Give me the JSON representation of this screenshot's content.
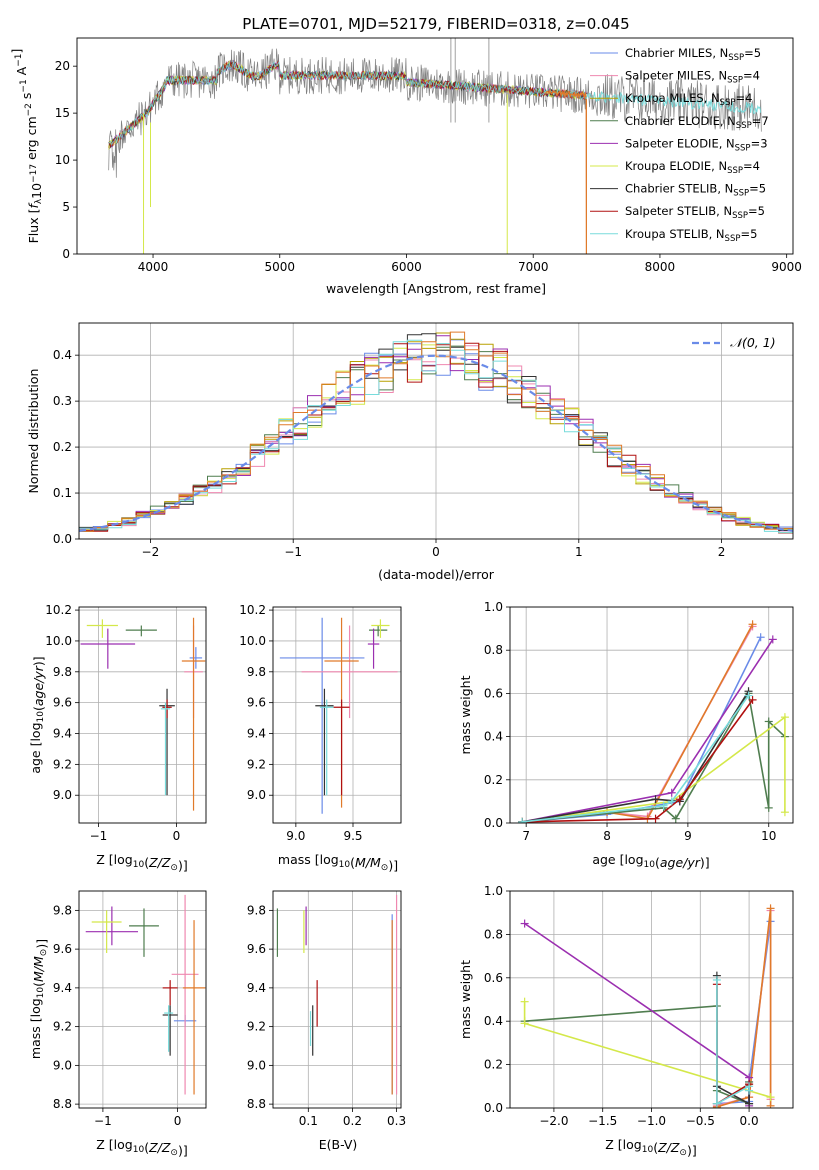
{
  "figure_title": "PLATE=0701, MJD=52179, FIBERID=0318, z=0.045",
  "colors": {
    "chabrier_miles": "#6a8be8",
    "salpeter_miles": "#ef88b0",
    "kroupa_miles": "#b8a000",
    "chabrier_elodie": "#4f7d4f",
    "salpeter_elodie": "#9b2fb0",
    "kroupa_elodie": "#d4e84a",
    "chabrier_stelib": "#333333",
    "salpeter_stelib": "#b01010",
    "kroupa_stelib": "#78dcdc",
    "data": "#808080",
    "orange": "#e07a2a",
    "grid": "#b0b0b0"
  },
  "chart_data": [
    {
      "id": "spectrum",
      "type": "line",
      "xlabel": "wavelength [Angstrom, rest frame]",
      "ylabel": "Flux [fλ10⁻¹⁷ erg cm⁻² s⁻¹ A⁻¹]",
      "xlim": [
        3400,
        9050
      ],
      "ylim": [
        0,
        23
      ],
      "xticks": [
        4000,
        5000,
        6000,
        7000,
        8000,
        9000
      ],
      "yticks": [
        0,
        5,
        10,
        15,
        20
      ],
      "grid": false,
      "legend_position": "top-right",
      "legend": [
        {
          "label": "Chabrier MILES, N",
          "sub": "SSP",
          "tail": "=5",
          "color_key": "chabrier_miles"
        },
        {
          "label": "Salpeter MILES, N",
          "sub": "SSP",
          "tail": "=4",
          "color_key": "salpeter_miles"
        },
        {
          "label": "Kroupa MILES, N",
          "sub": "SSP",
          "tail": "=4",
          "color_key": "kroupa_miles"
        },
        {
          "label": "Chabrier ELODIE, N",
          "sub": "SSP",
          "tail": "=7",
          "color_key": "chabrier_elodie"
        },
        {
          "label": "Salpeter ELODIE, N",
          "sub": "SSP",
          "tail": "=3",
          "color_key": "salpeter_elodie"
        },
        {
          "label": "Kroupa ELODIE, N",
          "sub": "SSP",
          "tail": "=4",
          "color_key": "kroupa_elodie"
        },
        {
          "label": "Chabrier STELIB, N",
          "sub": "SSP",
          "tail": "=5",
          "color_key": "chabrier_stelib"
        },
        {
          "label": "Salpeter STELIB, N",
          "sub": "SSP",
          "tail": "=5",
          "color_key": "salpeter_stelib"
        },
        {
          "label": "Kroupa STELIB, N",
          "sub": "SSP",
          "tail": "=5",
          "color_key": "kroupa_stelib"
        }
      ],
      "data_spectrum": {
        "x_start": 3650,
        "x_end": 8800,
        "approx_level": 18.5,
        "noise_amplitude": 2.5
      },
      "model_range": {
        "x_start": 3650,
        "x_end": 7420
      }
    },
    {
      "id": "residuals",
      "type": "histogram",
      "xlabel": "(data-model)/error",
      "ylabel": "Normed distribution",
      "xlim": [
        -2.5,
        2.5
      ],
      "ylim": [
        0,
        0.47
      ],
      "xticks": [
        -2,
        -1,
        0,
        1,
        2
      ],
      "yticks": [
        0.0,
        0.1,
        0.2,
        0.3,
        0.4
      ],
      "grid": true,
      "legend_position": "top-right",
      "legend_label": "𝒩(0, 1)",
      "gaussian": {
        "mean": 0,
        "sigma": 1
      },
      "bin_width": 0.1
    },
    {
      "id": "age_vs_Z",
      "type": "errorbar",
      "xlabel": "Z [log10(Z/Z⊙)]",
      "ylabel": "age  [log10(age/yr)]",
      "xlim": [
        -1.25,
        0.38
      ],
      "ylim": [
        8.82,
        10.22
      ],
      "xticks": [
        -1,
        0
      ],
      "yticks": [
        9.0,
        9.2,
        9.4,
        9.6,
        9.8,
        10.0,
        10.2
      ],
      "points": [
        {
          "x": 0.25,
          "y": 9.89,
          "xerr": 0.08,
          "ye": [
            9.82,
            9.96
          ],
          "c": "chabrier_miles"
        },
        {
          "x": 0.22,
          "y": 9.8,
          "xerr": 0.12,
          "ye": [
            9.5,
            10.1
          ],
          "c": "salpeter_miles"
        },
        {
          "x": 0.22,
          "y": 9.87,
          "xerr": 0.15,
          "ye": [
            8.9,
            10.15
          ],
          "c": "orange"
        },
        {
          "x": -0.45,
          "y": 10.07,
          "xerr": 0.2,
          "ye": [
            10.03,
            10.1
          ],
          "c": "chabrier_elodie"
        },
        {
          "x": -0.88,
          "y": 9.98,
          "xerr": 0.35,
          "ye": [
            9.82,
            10.08
          ],
          "c": "salpeter_elodie"
        },
        {
          "x": -0.95,
          "y": 10.1,
          "xerr": 0.2,
          "ye": [
            10.02,
            10.14
          ],
          "c": "kroupa_elodie"
        },
        {
          "x": -0.12,
          "y": 9.58,
          "xerr": 0.1,
          "ye": [
            9.0,
            9.69
          ],
          "c": "chabrier_stelib"
        },
        {
          "x": -0.12,
          "y": 9.57,
          "xerr": 0.06,
          "ye": [
            9.5,
            9.62
          ],
          "c": "salpeter_stelib"
        },
        {
          "x": -0.14,
          "y": 9.56,
          "xerr": 0.06,
          "ye": [
            9.0,
            9.6
          ],
          "c": "kroupa_stelib"
        }
      ]
    },
    {
      "id": "age_vs_mass",
      "type": "errorbar",
      "xlabel": "mass [log10(M/M⊙)]",
      "ylabel": "",
      "xlim": [
        8.8,
        9.92
      ],
      "ylim": [
        8.82,
        10.22
      ],
      "xticks": [
        9.0,
        9.5
      ],
      "yticks": [
        9.0,
        9.2,
        9.4,
        9.6,
        9.8,
        10.0,
        10.2
      ],
      "points": [
        {
          "x": 9.23,
          "y": 9.89,
          "xerr": 0.37,
          "ye": [
            8.88,
            10.15
          ],
          "c": "chabrier_miles"
        },
        {
          "x": 9.47,
          "y": 9.8,
          "xerr": 0.42,
          "ye": [
            9.5,
            10.1
          ],
          "c": "salpeter_miles"
        },
        {
          "x": 9.4,
          "y": 9.87,
          "xerr": 0.15,
          "ye": [
            8.92,
            10.15
          ],
          "c": "orange"
        },
        {
          "x": 9.72,
          "y": 10.07,
          "xerr": 0.08,
          "ye": [
            10.03,
            10.1
          ],
          "c": "chabrier_elodie"
        },
        {
          "x": 9.68,
          "y": 9.98,
          "xerr": 0.05,
          "ye": [
            9.82,
            10.08
          ],
          "c": "salpeter_elodie"
        },
        {
          "x": 9.74,
          "y": 10.1,
          "xerr": 0.08,
          "ye": [
            10.02,
            10.14
          ],
          "c": "kroupa_elodie"
        },
        {
          "x": 9.25,
          "y": 9.58,
          "xerr": 0.08,
          "ye": [
            9.0,
            9.69
          ],
          "c": "chabrier_stelib"
        },
        {
          "x": 9.4,
          "y": 9.57,
          "xerr": 0.07,
          "ye": [
            9.0,
            9.62
          ],
          "c": "salpeter_stelib"
        },
        {
          "x": 9.27,
          "y": 9.57,
          "xerr": 0.06,
          "ye": [
            9.0,
            9.62
          ],
          "c": "kroupa_stelib"
        }
      ]
    },
    {
      "id": "massweight_vs_age",
      "type": "line",
      "xlabel": "age  [log10(age/yr)]",
      "ylabel": "mass weight",
      "xlim": [
        6.8,
        10.3
      ],
      "ylim": [
        0,
        1.0
      ],
      "xticks": [
        7,
        8,
        9,
        10
      ],
      "yticks": [
        0.0,
        0.2,
        0.4,
        0.6,
        0.8,
        1.0
      ],
      "grid": true,
      "series": [
        {
          "c": "chabrier_miles",
          "x": [
            6.95,
            8.0,
            8.6,
            8.9,
            9.9
          ],
          "y": [
            0.005,
            0.04,
            0.08,
            0.1,
            0.86
          ]
        },
        {
          "c": "salpeter_miles",
          "x": [
            6.95,
            8.0,
            8.5,
            9.8
          ],
          "y": [
            0.005,
            0.05,
            0.03,
            0.91
          ]
        },
        {
          "c": "orange",
          "x": [
            6.95,
            8.0,
            8.5,
            9.8
          ],
          "y": [
            0.005,
            0.05,
            0.02,
            0.92
          ]
        },
        {
          "c": "chabrier_elodie",
          "x": [
            6.95,
            8.7,
            8.85,
            9.75,
            10.0,
            10.0,
            10.2
          ],
          "y": [
            0.005,
            0.07,
            0.02,
            0.6,
            0.07,
            0.47,
            0.4
          ]
        },
        {
          "c": "salpeter_elodie",
          "x": [
            6.95,
            8.8,
            10.05
          ],
          "y": [
            0.005,
            0.14,
            0.85
          ]
        },
        {
          "c": "kroupa_elodie",
          "x": [
            6.95,
            8.8,
            10.2,
            10.2
          ],
          "y": [
            0.005,
            0.1,
            0.49,
            0.05
          ]
        },
        {
          "c": "chabrier_stelib",
          "x": [
            6.95,
            8.6,
            8.9,
            9.75
          ],
          "y": [
            0.005,
            0.11,
            0.1,
            0.61
          ]
        },
        {
          "c": "salpeter_stelib",
          "x": [
            6.95,
            8.6,
            8.9,
            9.8
          ],
          "y": [
            0.005,
            0.02,
            0.11,
            0.57
          ]
        },
        {
          "c": "kroupa_stelib",
          "x": [
            6.95,
            8.7,
            8.8,
            9.75
          ],
          "y": [
            0.005,
            0.08,
            0.1,
            0.59
          ]
        }
      ]
    },
    {
      "id": "mass_vs_Z",
      "type": "errorbar",
      "xlabel": "Z [log10(Z/Z⊙)]",
      "ylabel": "mass [log10(M/M⊙)]",
      "xlim": [
        -1.32,
        0.38
      ],
      "ylim": [
        8.78,
        9.9
      ],
      "xticks": [
        -1,
        0
      ],
      "yticks": [
        8.8,
        9.0,
        9.2,
        9.4,
        9.6,
        9.8
      ],
      "points": [
        {
          "x": 0.1,
          "y": 9.23,
          "xerr": 0.15,
          "ye": [
            9.2,
            9.26
          ],
          "c": "chabrier_miles"
        },
        {
          "x": 0.1,
          "y": 9.47,
          "xerr": 0.18,
          "ye": [
            8.85,
            9.88
          ],
          "c": "salpeter_miles"
        },
        {
          "x": 0.22,
          "y": 9.4,
          "xerr": 0.15,
          "ye": [
            8.85,
            9.75
          ],
          "c": "orange"
        },
        {
          "x": -0.45,
          "y": 9.72,
          "xerr": 0.2,
          "ye": [
            9.56,
            9.81
          ],
          "c": "chabrier_elodie"
        },
        {
          "x": -0.88,
          "y": 9.69,
          "xerr": 0.35,
          "ye": [
            9.62,
            9.82
          ],
          "c": "salpeter_elodie"
        },
        {
          "x": -0.95,
          "y": 9.74,
          "xerr": 0.2,
          "ye": [
            9.58,
            9.8
          ],
          "c": "kroupa_elodie"
        },
        {
          "x": -0.1,
          "y": 9.26,
          "xerr": 0.1,
          "ye": [
            9.05,
            9.31
          ],
          "c": "chabrier_stelib"
        },
        {
          "x": -0.1,
          "y": 9.4,
          "xerr": 0.1,
          "ye": [
            9.31,
            9.44
          ],
          "c": "salpeter_stelib"
        },
        {
          "x": -0.12,
          "y": 9.27,
          "xerr": 0.06,
          "ye": [
            9.07,
            9.31
          ],
          "c": "kroupa_stelib"
        }
      ]
    },
    {
      "id": "mass_vs_ebv",
      "type": "errorbar",
      "xlabel": "E(B-V)",
      "ylabel": "",
      "xlim": [
        0.02,
        0.31
      ],
      "ylim": [
        8.78,
        9.9
      ],
      "xticks": [
        0.1,
        0.2,
        0.3
      ],
      "yticks": [
        8.8,
        9.0,
        9.2,
        9.4,
        9.6,
        9.8
      ],
      "points": [
        {
          "x": 0.29,
          "y": 9.23,
          "xerr": 0.0,
          "ye": [
            8.85,
            9.78
          ],
          "c": "chabrier_miles"
        },
        {
          "x": 0.3,
          "y": 9.47,
          "xerr": 0.0,
          "ye": [
            8.85,
            9.88
          ],
          "c": "salpeter_miles"
        },
        {
          "x": 0.29,
          "y": 9.4,
          "xerr": 0.0,
          "ye": [
            8.85,
            9.75
          ],
          "c": "orange"
        },
        {
          "x": 0.03,
          "y": 9.72,
          "xerr": 0.0,
          "ye": [
            9.56,
            9.81
          ],
          "c": "chabrier_elodie"
        },
        {
          "x": 0.095,
          "y": 9.69,
          "xerr": 0.0,
          "ye": [
            9.62,
            9.82
          ],
          "c": "salpeter_elodie"
        },
        {
          "x": 0.09,
          "y": 9.74,
          "xerr": 0.0,
          "ye": [
            9.58,
            9.8
          ],
          "c": "kroupa_elodie"
        },
        {
          "x": 0.11,
          "y": 9.2,
          "xerr": 0.0,
          "ye": [
            9.05,
            9.31
          ],
          "c": "chabrier_stelib"
        },
        {
          "x": 0.12,
          "y": 9.3,
          "xerr": 0.0,
          "ye": [
            9.2,
            9.44
          ],
          "c": "salpeter_stelib"
        },
        {
          "x": 0.105,
          "y": 9.2,
          "xerr": 0.0,
          "ye": [
            9.1,
            9.28
          ],
          "c": "kroupa_stelib"
        }
      ]
    },
    {
      "id": "massweight_vs_Z",
      "type": "line",
      "xlabel": "Z [log10(Z/Z⊙)]",
      "ylabel": "mass weight",
      "xlim": [
        -2.45,
        0.45
      ],
      "ylim": [
        0,
        1.0
      ],
      "xticks": [
        -2.0,
        -1.5,
        -1.0,
        -0.5,
        0.0
      ],
      "yticks": [
        0.0,
        0.2,
        0.4,
        0.6,
        0.8,
        1.0
      ],
      "grid": true,
      "series": [
        {
          "c": "chabrier_miles",
          "x": [
            -0.33,
            0.0,
            0.0,
            0.22
          ],
          "y": [
            0.02,
            0.03,
            0.12,
            0.86
          ]
        },
        {
          "c": "salpeter_miles",
          "x": [
            -0.33,
            0.0,
            0.22,
            0.22
          ],
          "y": [
            0.01,
            0.05,
            0.91,
            0.04
          ]
        },
        {
          "c": "orange",
          "x": [
            -0.33,
            0.0,
            0.22,
            0.22
          ],
          "y": [
            0.005,
            0.05,
            0.92,
            0.01
          ]
        },
        {
          "c": "chabrier_elodie",
          "x": [
            -2.3,
            -0.33,
            -0.33,
            0.0,
            0.0
          ],
          "y": [
            0.4,
            0.47,
            0.08,
            0.02,
            0.12
          ]
        },
        {
          "c": "salpeter_elodie",
          "x": [
            -2.3,
            0.0,
            0.0
          ],
          "y": [
            0.85,
            0.14,
            0.01
          ]
        },
        {
          "c": "kroupa_elodie",
          "x": [
            -2.3,
            -2.3,
            0.22
          ],
          "y": [
            0.49,
            0.39,
            0.05
          ]
        },
        {
          "c": "chabrier_stelib",
          "x": [
            -0.33,
            -0.33,
            0.0,
            0.0
          ],
          "y": [
            0.61,
            0.1,
            0.02,
            0.11
          ]
        },
        {
          "c": "salpeter_stelib",
          "x": [
            -0.33,
            -0.33,
            0.0
          ],
          "y": [
            0.57,
            0.02,
            0.11
          ]
        },
        {
          "c": "kroupa_stelib",
          "x": [
            -0.33,
            -0.33,
            0.0,
            0.0
          ],
          "y": [
            0.59,
            0.02,
            0.1,
            0.08
          ]
        }
      ]
    }
  ]
}
